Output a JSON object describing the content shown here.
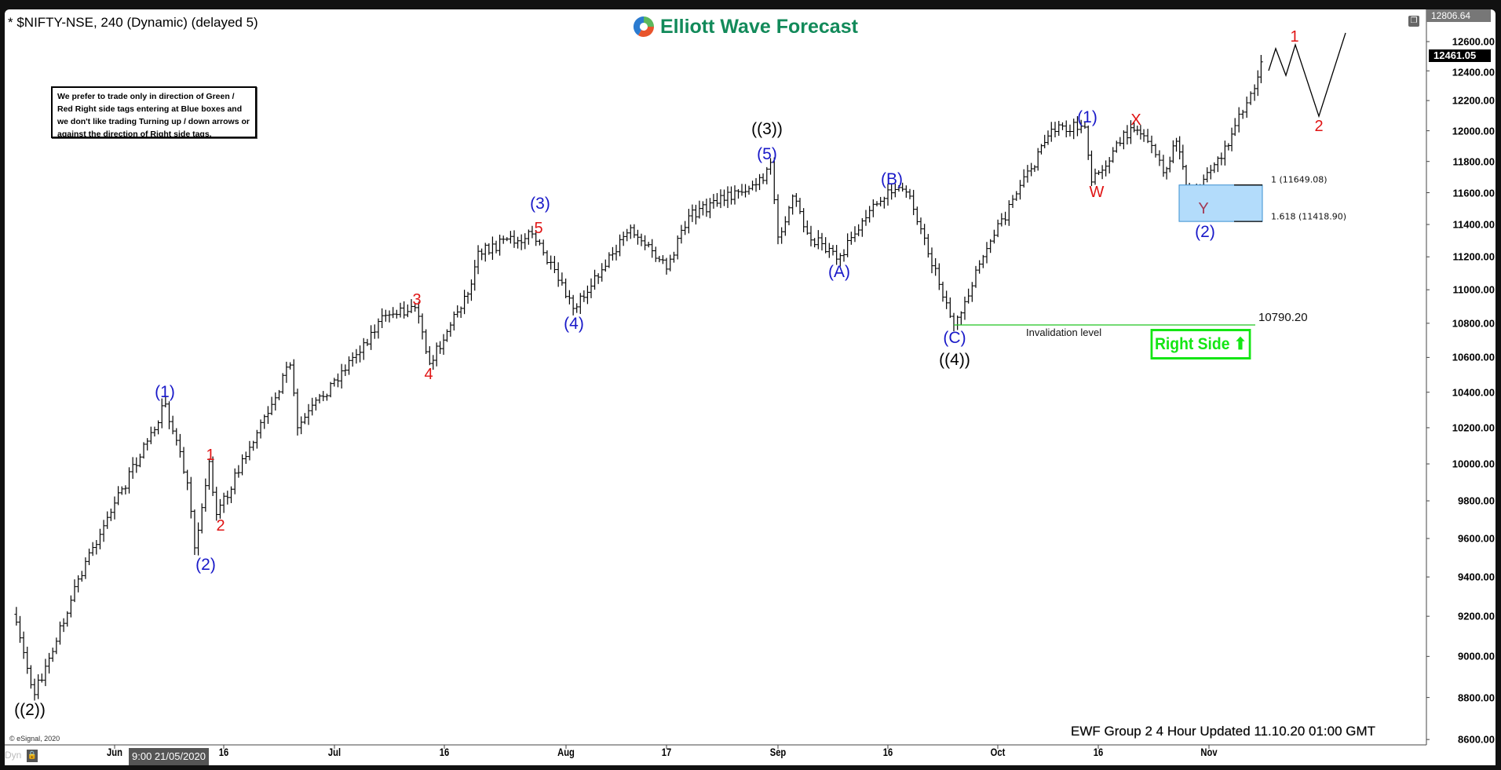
{
  "header": {
    "title": "* $NIFTY-NSE, 240 (Dynamic) (delayed 5)",
    "logo_text": "Elliott Wave Forecast"
  },
  "note": "We prefer to trade only in direction of Green / Red Right side tags entering at Blue boxes and we don't like trading Turning up / down arrows or against the direction of Right side tags.",
  "footer": {
    "updated": "EWF Group 2  4 Hour Updated 11.10.20 01:00 GMT",
    "copyright": "© eSignal, 2020",
    "dyn": "Dyn",
    "cursor_readout": "9:00 21/05/2020"
  },
  "colors": {
    "wave_blue": "#1818c8",
    "wave_red": "#e01414",
    "wave_black": "#000000",
    "wave_maroon": "#a33a55",
    "invalidation_line": "#22c422",
    "right_side": "#14e614",
    "blue_box": "#b3dcfb"
  },
  "chart_data": {
    "type": "ohlc-bar",
    "symbol": "$NIFTY-NSE",
    "interval": "240",
    "y_scale": "log",
    "ylim": [
      8600,
      12806.64
    ],
    "yticks": [
      "12600.00",
      "12400.00",
      "12200.00",
      "12000.00",
      "11800.00",
      "11600.00",
      "11400.00",
      "11200.00",
      "11000.00",
      "10800.00",
      "10600.00",
      "10400.00",
      "10200.00",
      "10000.00",
      "9800.00",
      "9600.00",
      "9400.00",
      "9200.00",
      "9000.00",
      "8800.00",
      "8600.00"
    ],
    "xticks": [
      {
        "label": "Jun",
        "date": "2020-06-01"
      },
      {
        "label": "16",
        "date": "2020-06-16"
      },
      {
        "label": "Jul",
        "date": "2020-07-01"
      },
      {
        "label": "16",
        "date": "2020-07-16"
      },
      {
        "label": "Aug",
        "date": "2020-08-03"
      },
      {
        "label": "17",
        "date": "2020-08-17"
      },
      {
        "label": "Sep",
        "date": "2020-09-01"
      },
      {
        "label": "16",
        "date": "2020-09-16"
      },
      {
        "label": "Oct",
        "date": "2020-10-01"
      },
      {
        "label": "16",
        "date": "2020-10-16"
      },
      {
        "label": "Nov",
        "date": "2020-11-02"
      }
    ],
    "axis_high": "12806.64",
    "last_price": "12461.05",
    "price_path": [
      [
        "2020-05-18",
        9210
      ],
      [
        "2020-05-21",
        8814
      ],
      [
        "2020-05-28",
        9480
      ],
      [
        "2020-06-08",
        10333
      ],
      [
        "2020-06-11",
        9897
      ],
      [
        "2020-06-12",
        9551
      ],
      [
        "2020-06-14",
        10013
      ],
      [
        "2020-06-15",
        9727
      ],
      [
        "2020-06-25",
        10556
      ],
      [
        "2020-06-26",
        10200
      ],
      [
        "2020-07-08",
        10847
      ],
      [
        "2020-07-12",
        10893
      ],
      [
        "2020-07-14",
        10565
      ],
      [
        "2020-07-20",
        11034
      ],
      [
        "2020-07-21",
        11234
      ],
      [
        "2020-07-29",
        11341
      ],
      [
        "2020-08-04",
        10888
      ],
      [
        "2020-08-12",
        11380
      ],
      [
        "2020-08-17",
        11125
      ],
      [
        "2020-08-20",
        11454
      ],
      [
        "2020-08-30",
        11678
      ],
      [
        "2020-08-31",
        11794
      ],
      [
        "2020-09-01",
        11322
      ],
      [
        "2020-09-03",
        11578
      ],
      [
        "2020-09-05",
        11346
      ],
      [
        "2020-09-09",
        11186
      ],
      [
        "2020-09-16",
        11618
      ],
      [
        "2020-09-19",
        11578
      ],
      [
        "2020-09-25",
        10790
      ],
      [
        "2020-09-30",
        11297
      ],
      [
        "2020-10-06",
        11753
      ],
      [
        "2020-10-09",
        12010
      ],
      [
        "2020-10-14",
        12024
      ],
      [
        "2020-10-15",
        11668
      ],
      [
        "2020-10-21",
        12020
      ],
      [
        "2020-10-23",
        11967
      ],
      [
        "2020-10-26",
        11728
      ],
      [
        "2020-10-28",
        11931
      ],
      [
        "2020-10-30",
        11538
      ],
      [
        "2020-11-05",
        11903
      ],
      [
        "2020-11-06",
        12034
      ],
      [
        "2020-11-09",
        12280
      ],
      [
        "2020-11-10",
        12461
      ]
    ],
    "projection": [
      12401,
      12552,
      12369,
      12578,
      12096,
      12660
    ],
    "blue_box": {
      "top": 11649.08,
      "bottom": 11418.9,
      "labels": [
        "1 (11649.08)",
        "1.618 (11418.90)"
      ]
    },
    "invalidation": {
      "level": 10790.2,
      "value_label": "10790.20",
      "label": "Invalidation level"
    },
    "right_side_tag": "Right Side",
    "wave_labels": [
      {
        "text": "((2))",
        "color": "black"
      },
      {
        "text": "(1)",
        "color": "blue"
      },
      {
        "text": "1",
        "color": "red"
      },
      {
        "text": "2",
        "color": "red"
      },
      {
        "text": "(2)",
        "color": "blue"
      },
      {
        "text": "3",
        "color": "red"
      },
      {
        "text": "4",
        "color": "red"
      },
      {
        "text": "(3)",
        "color": "blue"
      },
      {
        "text": "5",
        "color": "red"
      },
      {
        "text": "(4)",
        "color": "blue"
      },
      {
        "text": "((3))",
        "color": "black"
      },
      {
        "text": "(5)",
        "color": "blue"
      },
      {
        "text": "(A)",
        "color": "blue"
      },
      {
        "text": "(B)",
        "color": "blue"
      },
      {
        "text": "(C)",
        "color": "blue"
      },
      {
        "text": "((4))",
        "color": "black"
      },
      {
        "text": "(1)",
        "color": "blue"
      },
      {
        "text": "W",
        "color": "red"
      },
      {
        "text": "X",
        "color": "red"
      },
      {
        "text": "Y",
        "color": "maroon"
      },
      {
        "text": "(2)",
        "color": "blue"
      },
      {
        "text": "1",
        "color": "red"
      },
      {
        "text": "2",
        "color": "red"
      }
    ]
  }
}
